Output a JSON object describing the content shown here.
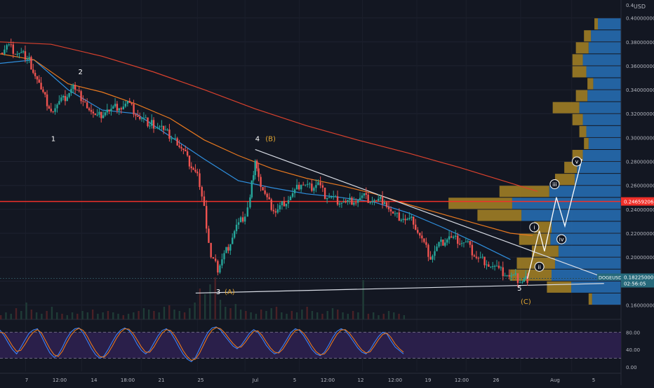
{
  "currency": "USD",
  "chart_data": [
    {
      "type": "line",
      "symbol": "DOGEUSD",
      "title": "",
      "x_ticks": [
        "7",
        "12:00",
        "14",
        "18:00",
        "21",
        "25",
        "Jul",
        "5",
        "12:00",
        "12",
        "12:00",
        "19",
        "12:00",
        "26",
        "Aug",
        "5"
      ],
      "y_ticks": [
        "0.16000000",
        "0.18000000",
        "0.20000000",
        "0.22000000",
        "0.24000000",
        "0.26000000",
        "0.28000000",
        "0.30000000",
        "0.32000000",
        "0.34000000",
        "0.36000000",
        "0.38000000",
        "0.40000000"
      ],
      "ylim": [
        0.148,
        0.415
      ],
      "price_series": {
        "name": "price",
        "points": [
          [
            0,
            0.371
          ],
          [
            0.4,
            0.378
          ],
          [
            0.9,
            0.372
          ],
          [
            1.6,
            0.368
          ],
          [
            2.3,
            0.343
          ],
          [
            3.0,
            0.322
          ],
          [
            3.6,
            0.33
          ],
          [
            4.3,
            0.342
          ],
          [
            5.0,
            0.33
          ],
          [
            5.6,
            0.316
          ],
          [
            6.3,
            0.322
          ],
          [
            7.0,
            0.326
          ],
          [
            7.5,
            0.33
          ],
          [
            8.1,
            0.318
          ],
          [
            8.8,
            0.312
          ],
          [
            9.5,
            0.307
          ],
          [
            10.3,
            0.298
          ],
          [
            10.9,
            0.285
          ],
          [
            11.6,
            0.268
          ],
          [
            12.0,
            0.24
          ],
          [
            12.4,
            0.2
          ],
          [
            12.8,
            0.19
          ],
          [
            13.3,
            0.205
          ],
          [
            13.9,
            0.225
          ],
          [
            14.4,
            0.236
          ],
          [
            14.7,
            0.25
          ],
          [
            15.0,
            0.282
          ],
          [
            15.2,
            0.265
          ],
          [
            15.7,
            0.248
          ],
          [
            16.2,
            0.238
          ],
          [
            16.7,
            0.246
          ],
          [
            17.2,
            0.252
          ],
          [
            17.7,
            0.262
          ],
          [
            18.2,
            0.258
          ],
          [
            18.7,
            0.262
          ],
          [
            19.1,
            0.252
          ],
          [
            19.6,
            0.248
          ],
          [
            20.2,
            0.245
          ],
          [
            20.8,
            0.247
          ],
          [
            21.4,
            0.25
          ],
          [
            22.0,
            0.247
          ],
          [
            22.6,
            0.248
          ],
          [
            23.1,
            0.235
          ],
          [
            23.7,
            0.232
          ],
          [
            24.3,
            0.23
          ],
          [
            24.8,
            0.215
          ],
          [
            25.3,
            0.2
          ],
          [
            25.8,
            0.21
          ],
          [
            26.4,
            0.216
          ],
          [
            26.9,
            0.214
          ],
          [
            27.5,
            0.21
          ],
          [
            28.0,
            0.2
          ],
          [
            28.6,
            0.196
          ],
          [
            29.2,
            0.19
          ],
          [
            29.8,
            0.185
          ],
          [
            30.3,
            0.183
          ],
          [
            30.7,
            0.18
          ],
          [
            31.0,
            0.182
          ]
        ]
      },
      "projection": {
        "name": "projection",
        "points": [
          [
            31.0,
            0.182
          ],
          [
            31.7,
            0.222
          ],
          [
            32.0,
            0.205
          ],
          [
            32.7,
            0.25
          ],
          [
            33.2,
            0.226
          ],
          [
            34.2,
            0.282
          ]
        ]
      },
      "moving_averages": [
        {
          "name": "ma-blue",
          "color": "#2f8fde",
          "points": [
            [
              0,
              0.362
            ],
            [
              2,
              0.365
            ],
            [
              4,
              0.34
            ],
            [
              6,
              0.323
            ],
            [
              8,
              0.32
            ],
            [
              10,
              0.301
            ],
            [
              12,
              0.282
            ],
            [
              14,
              0.264
            ],
            [
              16,
              0.258
            ],
            [
              18,
              0.253
            ],
            [
              20,
              0.25
            ],
            [
              22,
              0.246
            ],
            [
              24,
              0.237
            ],
            [
              26,
              0.225
            ],
            [
              28,
              0.212
            ],
            [
              30,
              0.198
            ]
          ]
        },
        {
          "name": "ma-orange",
          "color": "#e7781f",
          "points": [
            [
              0,
              0.37
            ],
            [
              2,
              0.365
            ],
            [
              4,
              0.345
            ],
            [
              6,
              0.338
            ],
            [
              8,
              0.328
            ],
            [
              10,
              0.316
            ],
            [
              12,
              0.298
            ],
            [
              14,
              0.285
            ],
            [
              16,
              0.274
            ],
            [
              18,
              0.266
            ],
            [
              20,
              0.26
            ],
            [
              22,
              0.253
            ],
            [
              24,
              0.244
            ],
            [
              26,
              0.236
            ],
            [
              28,
              0.228
            ],
            [
              30,
              0.22
            ],
            [
              31.3,
              0.218
            ]
          ]
        },
        {
          "name": "ma-red",
          "color": "#d9412d",
          "points": [
            [
              0,
              0.38
            ],
            [
              3,
              0.378
            ],
            [
              6,
              0.368
            ],
            [
              9,
              0.355
            ],
            [
              12,
              0.34
            ],
            [
              15,
              0.324
            ],
            [
              18,
              0.31
            ],
            [
              21,
              0.298
            ],
            [
              24,
              0.287
            ],
            [
              27,
              0.275
            ],
            [
              30,
              0.262
            ],
            [
              31.6,
              0.255
            ]
          ]
        }
      ],
      "horizontal_level": {
        "value": 0.24659206,
        "label": "0.24659206",
        "color": "#f0302a"
      },
      "current_price": {
        "value": 0.18225,
        "label": "0.18225000",
        "symbol_label": "DOGEUSD",
        "countdown": "02:56:05"
      },
      "trendlines": [
        {
          "name": "upper-trendline",
          "points": [
            [
              15.0,
              0.29
            ],
            [
              35.5,
              0.183
            ]
          ]
        },
        {
          "name": "lower-trendline",
          "points": [
            [
              11.5,
              0.17
            ],
            [
              35.5,
              0.178
            ]
          ]
        }
      ],
      "wave_labels": [
        {
          "text": "1",
          "x": 3.0,
          "y": 0.297,
          "color": "#ffffff"
        },
        {
          "text": "2",
          "x": 4.6,
          "y": 0.353,
          "color": "#ffffff"
        },
        {
          "text": "3",
          "x": 12.7,
          "y": 0.169,
          "color": "#ffffff"
        },
        {
          "text": "(A)",
          "x": 13.2,
          "y": 0.169,
          "color": "#e0a531"
        },
        {
          "text": "4",
          "x": 15.0,
          "y": 0.297,
          "color": "#ffffff"
        },
        {
          "text": "(B)",
          "x": 15.6,
          "y": 0.297,
          "color": "#e0a531"
        },
        {
          "text": "5",
          "x": 30.4,
          "y": 0.172,
          "color": "#ffffff"
        },
        {
          "text": "(C)",
          "x": 30.6,
          "y": 0.161,
          "color": "#e0a531"
        }
      ],
      "circled_labels": [
        {
          "text": "i",
          "x": 31.4,
          "y": 0.225
        },
        {
          "text": "ii",
          "x": 31.7,
          "y": 0.192
        },
        {
          "text": "iii",
          "x": 32.6,
          "y": 0.261
        },
        {
          "text": "iv",
          "x": 33.0,
          "y": 0.215
        },
        {
          "text": "v",
          "x": 33.9,
          "y": 0.28
        }
      ],
      "volume_profile": [
        {
          "price": 0.395,
          "up": 0.2,
          "down": 0.03
        },
        {
          "price": 0.385,
          "up": 0.26,
          "down": 0.06
        },
        {
          "price": 0.375,
          "up": 0.28,
          "down": 0.11
        },
        {
          "price": 0.365,
          "up": 0.33,
          "down": 0.09
        },
        {
          "price": 0.355,
          "up": 0.3,
          "down": 0.12
        },
        {
          "price": 0.345,
          "up": 0.24,
          "down": 0.05
        },
        {
          "price": 0.335,
          "up": 0.29,
          "down": 0.1
        },
        {
          "price": 0.325,
          "up": 0.36,
          "down": 0.23
        },
        {
          "price": 0.315,
          "up": 0.33,
          "down": 0.09
        },
        {
          "price": 0.305,
          "up": 0.3,
          "down": 0.06
        },
        {
          "price": 0.295,
          "up": 0.28,
          "down": 0.04
        },
        {
          "price": 0.285,
          "up": 0.33,
          "down": 0.09
        },
        {
          "price": 0.275,
          "up": 0.38,
          "down": 0.11
        },
        {
          "price": 0.265,
          "up": 0.4,
          "down": 0.17
        },
        {
          "price": 0.255,
          "up": 0.62,
          "down": 0.43
        },
        {
          "price": 0.245,
          "up": 0.94,
          "down": 0.55
        },
        {
          "price": 0.235,
          "up": 0.86,
          "down": 0.38
        },
        {
          "price": 0.225,
          "up": 0.6,
          "down": 0.15
        },
        {
          "price": 0.215,
          "up": 0.61,
          "down": 0.27
        },
        {
          "price": 0.205,
          "up": 0.54,
          "down": 0.23
        },
        {
          "price": 0.195,
          "up": 0.57,
          "down": 0.33
        },
        {
          "price": 0.185,
          "up": 0.6,
          "down": 0.36
        },
        {
          "price": 0.175,
          "up": 0.43,
          "down": 0.21
        },
        {
          "price": 0.165,
          "up": 0.25,
          "down": 0.03
        }
      ],
      "volume": [
        3,
        5,
        4,
        8,
        6,
        12,
        7,
        5,
        4,
        6,
        9,
        5,
        4,
        3,
        5,
        4,
        6,
        5,
        7,
        4,
        5,
        6,
        5,
        4,
        3,
        4,
        5,
        6,
        8,
        7,
        6,
        5,
        9,
        10,
        7,
        6,
        5,
        8,
        12,
        22,
        18,
        25,
        30,
        14,
        9,
        8,
        11,
        7,
        6,
        5,
        4,
        7,
        6,
        8,
        9,
        5,
        4,
        6,
        5,
        7,
        9,
        6,
        5,
        4,
        6,
        8,
        7,
        5,
        4,
        6,
        5,
        28,
        4,
        5,
        3,
        4,
        6,
        5,
        4,
        3,
        5,
        4,
        6,
        4,
        3,
        5,
        4,
        6,
        5,
        7,
        9,
        5,
        4,
        3,
        4,
        6,
        5,
        7,
        9,
        12,
        6,
        5,
        7
      ]
    },
    {
      "type": "line",
      "title": "",
      "y_ticks": [
        "80.00",
        "40.00",
        "0.00"
      ],
      "ylim": [
        -10,
        100
      ],
      "band": [
        20,
        80
      ],
      "series": [
        {
          "color": "#3b82f6",
          "values": [
            85,
            72,
            55,
            40,
            30,
            45,
            62,
            78,
            85,
            88,
            70,
            50,
            32,
            22,
            28,
            45,
            65,
            80,
            88,
            90,
            78,
            60,
            42,
            28,
            20,
            25,
            40,
            58,
            74,
            85,
            90,
            84,
            70,
            52,
            38,
            30,
            38,
            55,
            72,
            84,
            88,
            80,
            64,
            46,
            30,
            18,
            12,
            22,
            42,
            62,
            80,
            90,
            92,
            85,
            72,
            60,
            48,
            42,
            50,
            64,
            78,
            86,
            80,
            66,
            50,
            38,
            30,
            34,
            48,
            64,
            80,
            88,
            84,
            72,
            56,
            40,
            30,
            26,
            34,
            50,
            68,
            82,
            88,
            84,
            72,
            58,
            44,
            34,
            30,
            40,
            56,
            70,
            80,
            76,
            60,
            46,
            38,
            30
          ]
        },
        {
          "color": "#e7781f",
          "values": [
            80,
            78,
            64,
            48,
            36,
            38,
            52,
            68,
            80,
            86,
            78,
            60,
            42,
            28,
            24,
            36,
            55,
            72,
            84,
            89,
            84,
            70,
            52,
            36,
            24,
            22,
            32,
            48,
            66,
            80,
            88,
            87,
            77,
            62,
            46,
            34,
            34,
            46,
            63,
            78,
            86,
            84,
            72,
            56,
            38,
            24,
            15,
            18,
            32,
            52,
            71,
            85,
            91,
            88,
            79,
            66,
            54,
            45,
            46,
            57,
            71,
            82,
            83,
            73,
            58,
            44,
            34,
            32,
            41,
            56,
            72,
            84,
            86,
            78,
            64,
            48,
            35,
            28,
            30,
            42,
            59,
            75,
            85,
            86,
            78,
            65,
            51,
            39,
            32,
            35,
            48,
            63,
            75,
            78,
            68,
            53,
            42,
            34
          ]
        }
      ]
    }
  ],
  "time_axis": [
    "7",
    "12:00",
    "14",
    "18:00",
    "21",
    "25",
    "Jul",
    "5",
    "12:00",
    "12",
    "12:00",
    "19",
    "12:00",
    "26",
    "Aug",
    "5"
  ]
}
